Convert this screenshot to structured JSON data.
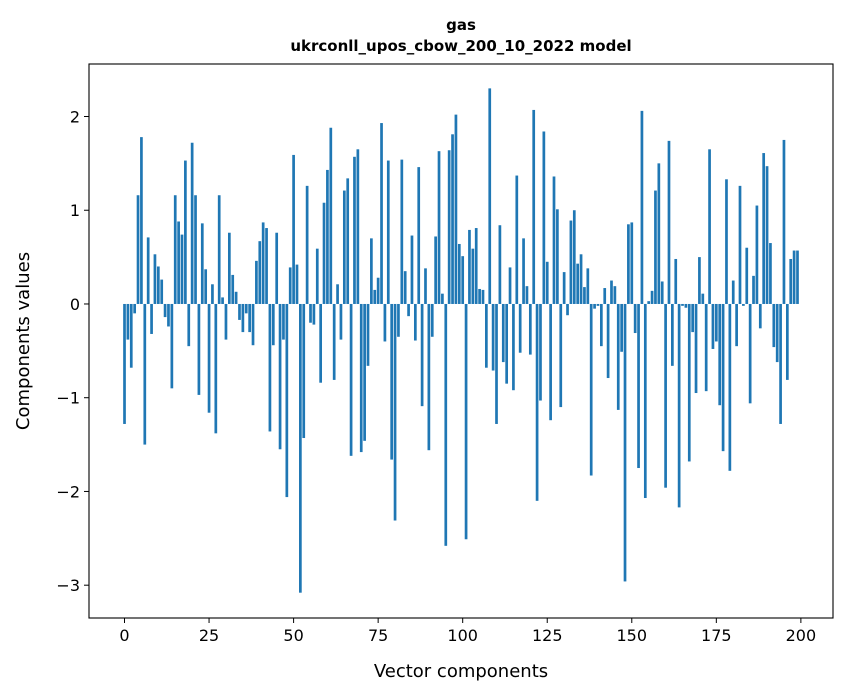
{
  "chart_data": {
    "type": "bar",
    "title": "gas",
    "subtitle": "ukrconll_upos_cbow_200_10_2022 model",
    "xlabel": "Vector components",
    "ylabel": "Components values",
    "xlim": [
      -10.5,
      209.5
    ],
    "ylim": [
      -3.35,
      2.56
    ],
    "xticks": [
      0,
      25,
      50,
      75,
      100,
      125,
      150,
      175,
      200
    ],
    "xtick_labels": [
      "0",
      "25",
      "50",
      "75",
      "100",
      "125",
      "150",
      "175",
      "200"
    ],
    "yticks": [
      -3,
      -2,
      -1,
      0,
      1,
      2
    ],
    "ytick_labels": [
      "−3",
      "−2",
      "−1",
      "0",
      "1",
      "2"
    ],
    "grid": false,
    "bar_color": "#1f77b4",
    "values": [
      -1.28,
      -0.38,
      -0.68,
      -0.1,
      1.16,
      1.78,
      -1.5,
      0.71,
      -0.32,
      0.53,
      0.4,
      0.26,
      -0.14,
      -0.24,
      -0.9,
      1.16,
      0.88,
      0.74,
      1.53,
      -0.45,
      1.72,
      1.16,
      -0.97,
      0.86,
      0.37,
      -1.16,
      0.21,
      -1.38,
      1.16,
      0.07,
      -0.38,
      0.76,
      0.31,
      0.13,
      -0.17,
      -0.3,
      -0.1,
      -0.3,
      -0.44,
      0.46,
      0.67,
      0.87,
      0.81,
      -1.36,
      -0.44,
      0.76,
      -1.55,
      -0.38,
      -2.06,
      0.39,
      1.59,
      0.42,
      -3.08,
      -1.43,
      1.26,
      -0.2,
      -0.22,
      0.59,
      -0.84,
      1.08,
      1.43,
      1.88,
      -0.81,
      0.21,
      -0.38,
      1.21,
      1.34,
      -1.62,
      1.57,
      1.65,
      -1.58,
      -1.46,
      -0.66,
      0.7,
      0.15,
      0.28,
      1.93,
      -0.4,
      1.53,
      -1.66,
      -2.31,
      -0.35,
      1.54,
      0.35,
      -0.13,
      0.73,
      -0.39,
      1.46,
      -1.09,
      0.38,
      -1.56,
      -0.35,
      0.72,
      1.63,
      0.11,
      -2.58,
      1.64,
      1.81,
      2.02,
      0.64,
      0.51,
      -2.51,
      0.79,
      0.59,
      0.81,
      0.16,
      0.15,
      -0.68,
      2.3,
      -0.71,
      -1.28,
      0.84,
      -0.62,
      -0.85,
      0.39,
      -0.92,
      1.37,
      -0.52,
      0.7,
      0.19,
      -0.54,
      2.07,
      -2.1,
      -1.03,
      1.84,
      0.45,
      -1.24,
      1.36,
      1.01,
      -1.1,
      0.34,
      -0.12,
      0.89,
      1.0,
      0.43,
      0.53,
      0.18,
      0.38,
      -1.83,
      -0.05,
      -0.02,
      -0.45,
      0.17,
      -0.79,
      0.25,
      0.19,
      -1.13,
      -0.51,
      -2.96,
      0.85,
      0.87,
      -0.31,
      -1.75,
      2.06,
      -2.07,
      0.03,
      0.14,
      1.21,
      1.5,
      0.24,
      -1.96,
      1.74,
      -0.66,
      0.48,
      -2.17,
      -0.02,
      -0.04,
      -1.68,
      -0.3,
      -0.95,
      0.5,
      0.11,
      -0.93,
      1.65,
      -0.48,
      -0.4,
      -1.08,
      -1.57,
      1.33,
      -1.78,
      0.25,
      -0.45,
      1.26,
      -0.02,
      0.6,
      -1.06,
      0.3,
      1.05,
      -0.26,
      1.61,
      1.47,
      0.65,
      -0.46,
      -0.62,
      -1.28,
      1.75,
      -0.81,
      0.48,
      0.57,
      0.57
    ]
  }
}
